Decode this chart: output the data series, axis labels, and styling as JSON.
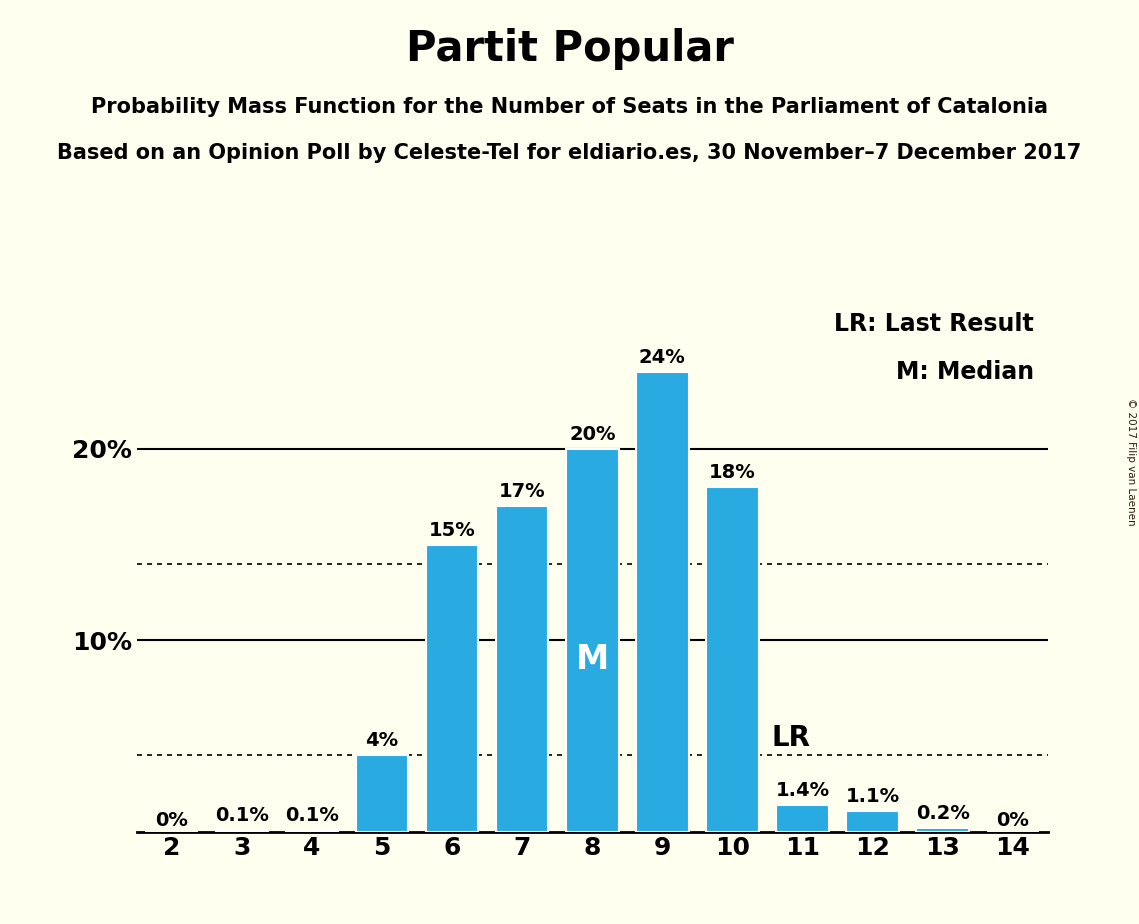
{
  "title": "Partit Popular",
  "subtitle1": "Probability Mass Function for the Number of Seats in the Parliament of Catalonia",
  "subtitle2": "Based on an Opinion Poll by Celeste-Tel for eldiario.es, 30 November–7 December 2017",
  "copyright": "© 2017 Filip van Laenen",
  "categories": [
    2,
    3,
    4,
    5,
    6,
    7,
    8,
    9,
    10,
    11,
    12,
    13,
    14
  ],
  "values": [
    0.0,
    0.1,
    0.1,
    4.0,
    15.0,
    17.0,
    20.0,
    24.0,
    18.0,
    1.4,
    1.1,
    0.2,
    0.0
  ],
  "labels": [
    "0%",
    "0.1%",
    "0.1%",
    "4%",
    "15%",
    "17%",
    "20%",
    "24%",
    "18%",
    "1.4%",
    "1.1%",
    "0.2%",
    "0%"
  ],
  "bar_color": "#29ABE2",
  "bar_edge_color": "white",
  "background_color": "#FFFFF0",
  "median_seat": 8,
  "last_result_seat": 10,
  "median_label": "M",
  "last_result_label": "LR",
  "legend_lr": "LR: Last Result",
  "legend_m": "M: Median",
  "dotted_lines": [
    4.0,
    14.0
  ],
  "solid_lines": [
    10.0,
    20.0
  ],
  "ylim": [
    0,
    28
  ],
  "title_fontsize": 30,
  "subtitle_fontsize": 15,
  "label_fontsize": 14,
  "tick_fontsize": 18,
  "median_fontsize": 24,
  "lr_fontsize": 20,
  "legend_fontsize": 17
}
